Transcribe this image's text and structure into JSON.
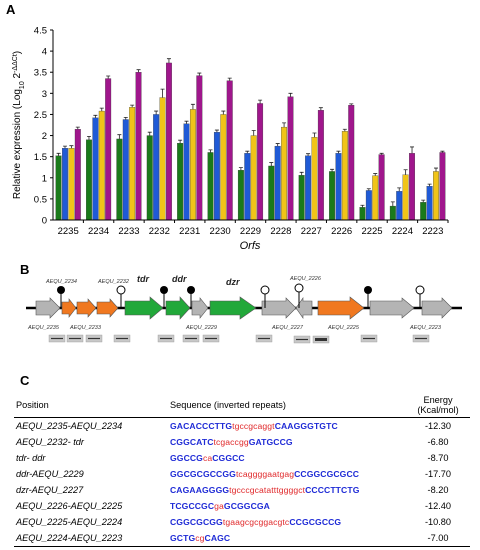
{
  "panels": {
    "a": "A",
    "b": "B",
    "c": "C"
  },
  "colors": {
    "series": [
      "#1a7a1a",
      "#1f5ad6",
      "#f0c419",
      "#a0168c"
    ],
    "gene_orange": "#f07820",
    "gene_green": "#22a83a",
    "gene_gray": "#b4b4b4"
  },
  "chart_data": {
    "type": "bar",
    "ylabel": "Relative expression (Log10 2-ΔΔCt)",
    "ylabel_parts": {
      "main": "Relative expression (Log",
      "sub": "10",
      "mid": " 2",
      "sup": "-ΔΔCt",
      "end": ")"
    },
    "xlabel": "Orfs",
    "ylim": [
      0,
      4.5
    ],
    "yticks": [
      "0",
      "0.5",
      "1",
      "1.5",
      "2",
      "2.5",
      "3",
      "3.5",
      "4",
      "4.5"
    ],
    "grid": false,
    "categories": [
      "2235",
      "2234",
      "2233",
      "2232",
      "2231",
      "2230",
      "2229",
      "2228",
      "2227",
      "2226",
      "2225",
      "2224",
      "2223"
    ],
    "series": [
      {
        "values": [
          1.52,
          1.9,
          1.92,
          2.0,
          1.82,
          1.6,
          1.18,
          1.28,
          1.06,
          1.15,
          0.3,
          0.33,
          0.42
        ],
        "errors": [
          0.06,
          0.08,
          0.1,
          0.08,
          0.07,
          0.06,
          0.06,
          0.08,
          0.07,
          0.05,
          0.05,
          0.1,
          0.05
        ]
      },
      {
        "values": [
          1.7,
          2.42,
          2.38,
          2.5,
          2.28,
          2.08,
          1.58,
          1.75,
          1.52,
          1.58,
          0.7,
          0.68,
          0.8
        ],
        "errors": [
          0.05,
          0.06,
          0.05,
          0.08,
          0.06,
          0.05,
          0.05,
          0.06,
          0.05,
          0.05,
          0.04,
          0.08,
          0.05
        ]
      },
      {
        "values": [
          1.7,
          2.58,
          2.67,
          2.9,
          2.62,
          2.5,
          2.0,
          2.2,
          1.96,
          2.1,
          1.05,
          1.07,
          1.15
        ],
        "errors": [
          0.06,
          0.07,
          0.05,
          0.2,
          0.12,
          0.08,
          0.12,
          0.1,
          0.1,
          0.05,
          0.05,
          0.12,
          0.08
        ]
      },
      {
        "values": [
          2.15,
          3.35,
          3.5,
          3.72,
          3.42,
          3.3,
          2.76,
          2.92,
          2.6,
          2.72,
          1.55,
          1.58,
          1.6
        ],
        "errors": [
          0.05,
          0.06,
          0.06,
          0.1,
          0.06,
          0.06,
          0.08,
          0.08,
          0.06,
          0.03,
          0.03,
          0.15,
          0.03
        ]
      }
    ]
  },
  "map": {
    "gene_labels": [
      {
        "text": "AEQU_2234",
        "style": "small"
      },
      {
        "text": "AEQU_2232",
        "style": "small"
      },
      {
        "text": "tdr",
        "style": "big"
      },
      {
        "text": "ddr",
        "style": "big"
      },
      {
        "text": "dzr",
        "style": "big"
      },
      {
        "text": "AEQU_2226",
        "style": "small"
      }
    ],
    "bottom_labels": [
      "AEQU_2235",
      "AEQU_2233",
      "AEQU_2229",
      "AEQU_2227",
      "AEQU_2225",
      "AEQU_2223"
    ]
  },
  "table": {
    "headers": {
      "position": "Position",
      "sequence": "Sequence (inverted repeats)",
      "energy": "Energy",
      "energy_unit": "(Kcal/mol)"
    },
    "rows": [
      {
        "position": "AEQU_2235-AEQU_2234",
        "stem1": "GACACCCTTG",
        "loop": "tgccgcaggt",
        "stem2": "CAAGGGTGTC",
        "energy": "-12.30"
      },
      {
        "position": "AEQU_2232- tdr",
        "stem1": "CGGCATC",
        "loop": "tcgaccgg",
        "stem2": "GATGCCG",
        "energy": "-6.80"
      },
      {
        "position": "tdr- ddr",
        "stem1": "GGCCG",
        "loop": "ca",
        "stem2": "CGGCC",
        "energy": "-8.70"
      },
      {
        "position": "ddr-AEQU_2229",
        "stem1": "GGCGCGCCGG",
        "loop": "tcaggggaatgag",
        "stem2": "CCGGCGCGCC",
        "energy": "-17.70"
      },
      {
        "position": "dzr-AEQU_2227",
        "stem1": "CAGAAGGGG",
        "loop": "tgcccgcatatttggggct",
        "stem2": "CCCCTTCTG",
        "energy": "-8.20"
      },
      {
        "position": "AEQU_2226-AEQU_2225",
        "stem1": "TCGCCGC",
        "loop": "ga",
        "stem2": "GCGGCGA",
        "energy": "-12.40"
      },
      {
        "position": "AEQU_2225-AEQU_2224",
        "stem1": "CGGCGCGG",
        "loop": "tgaagcgcggacgtc",
        "stem2": "CCGCGCCG",
        "energy": "-10.80"
      },
      {
        "position": "AEQU_2224-AEQU_2223",
        "stem1": "GCTG",
        "loop": "cg",
        "stem2": "CAGC",
        "energy": "-7.00"
      }
    ]
  }
}
